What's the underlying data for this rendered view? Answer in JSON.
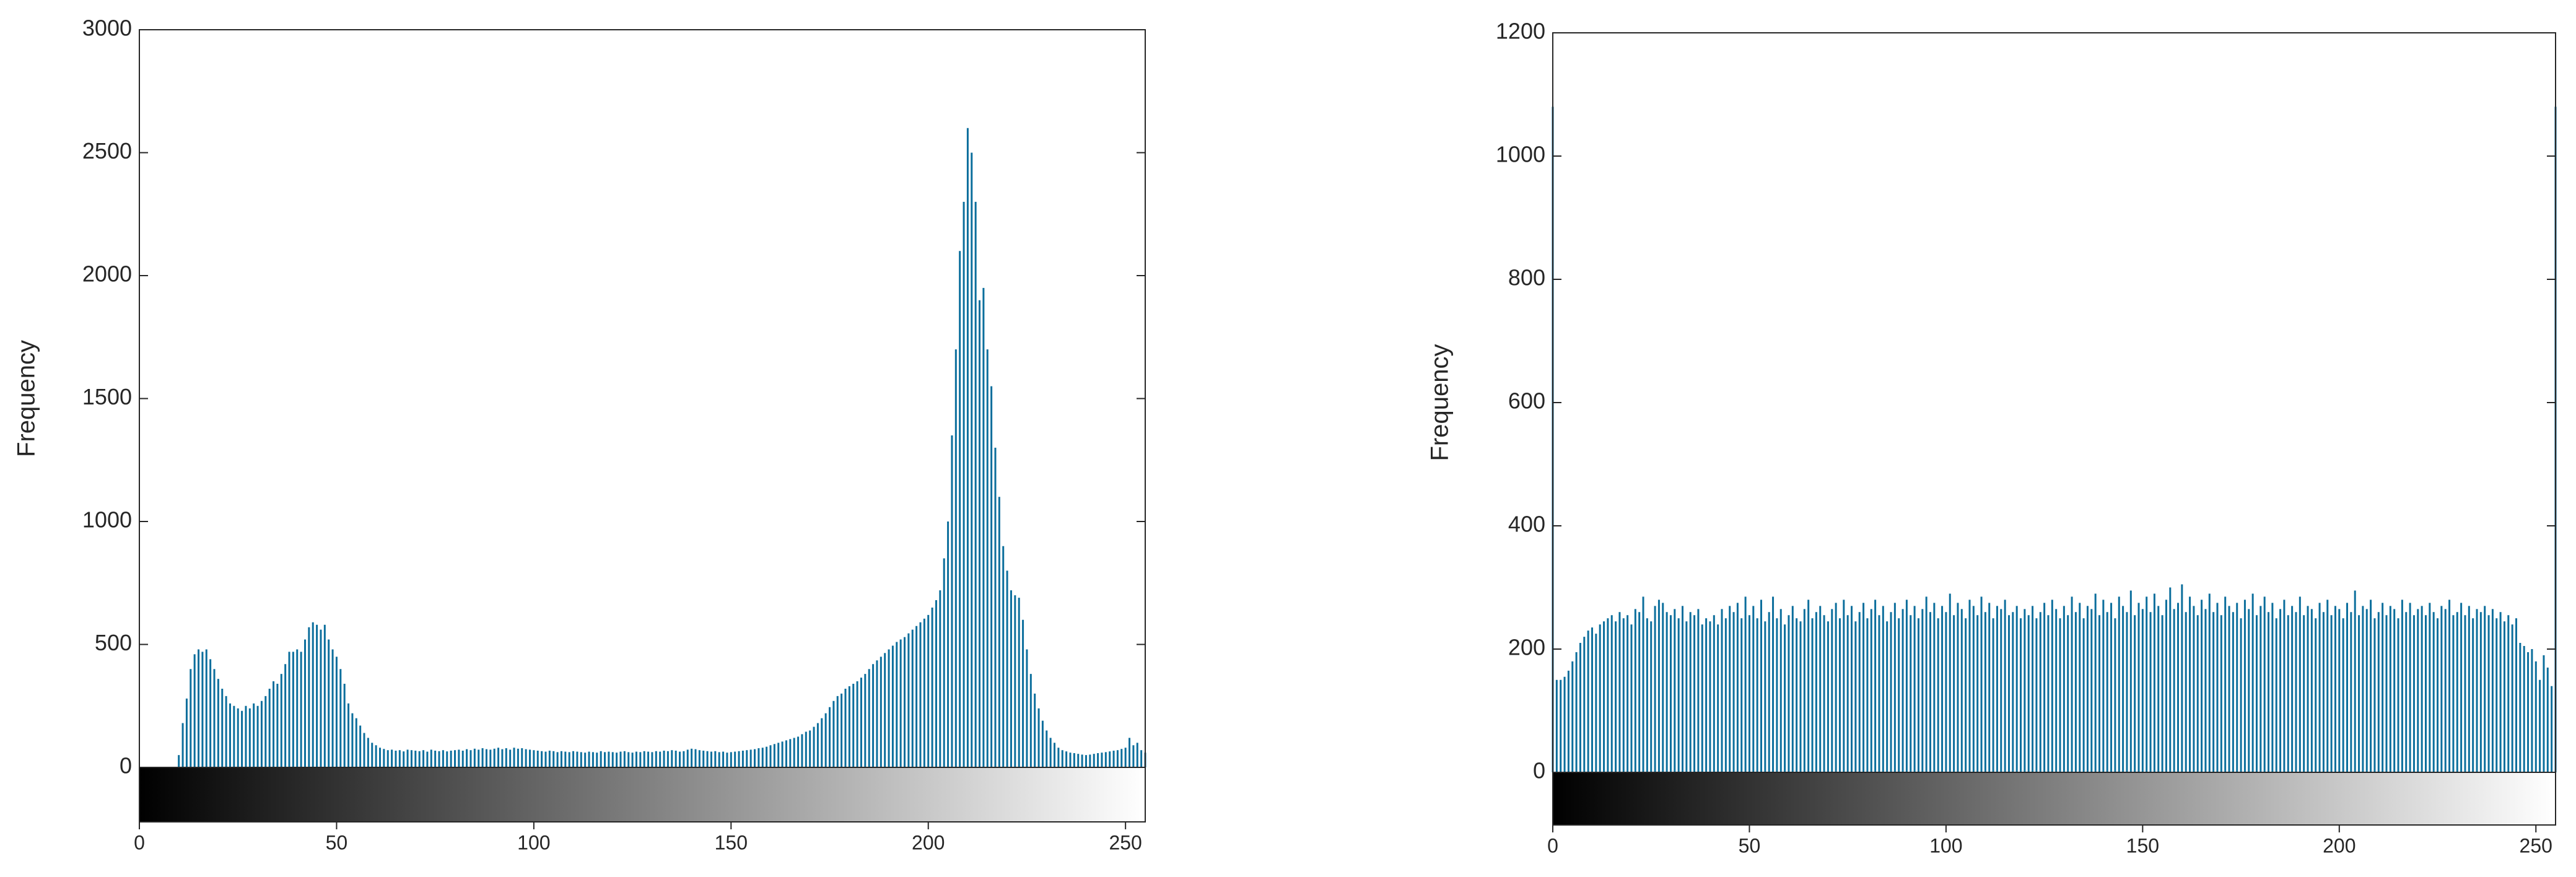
{
  "chart_data": [
    {
      "type": "histogram",
      "ylabel": "Frequency",
      "color": "#0b6e9c",
      "xlim": [
        0,
        255
      ],
      "xticks": [
        0,
        50,
        100,
        150,
        200,
        250
      ],
      "ylim": [
        0,
        3000
      ],
      "yticks": [
        0,
        500,
        1000,
        1500,
        2000,
        2500,
        3000
      ],
      "x": [
        0,
        1,
        2,
        3,
        4,
        5,
        6,
        7,
        8,
        9,
        10,
        11,
        12,
        13,
        14,
        15,
        16,
        17,
        18,
        19,
        20,
        21,
        22,
        23,
        24,
        25,
        26,
        27,
        28,
        29,
        30,
        31,
        32,
        33,
        34,
        35,
        36,
        37,
        38,
        39,
        40,
        41,
        42,
        43,
        44,
        45,
        46,
        47,
        48,
        49,
        50,
        51,
        52,
        53,
        54,
        55,
        56,
        57,
        58,
        59,
        60,
        61,
        62,
        63,
        64,
        65,
        66,
        67,
        68,
        69,
        70,
        71,
        72,
        73,
        74,
        75,
        76,
        77,
        78,
        79,
        80,
        81,
        82,
        83,
        84,
        85,
        86,
        87,
        88,
        89,
        90,
        91,
        92,
        93,
        94,
        95,
        96,
        97,
        98,
        99,
        100,
        101,
        102,
        103,
        104,
        105,
        106,
        107,
        108,
        109,
        110,
        111,
        112,
        113,
        114,
        115,
        116,
        117,
        118,
        119,
        120,
        121,
        122,
        123,
        124,
        125,
        126,
        127,
        128,
        129,
        130,
        131,
        132,
        133,
        134,
        135,
        136,
        137,
        138,
        139,
        140,
        141,
        142,
        143,
        144,
        145,
        146,
        147,
        148,
        149,
        150,
        151,
        152,
        153,
        154,
        155,
        156,
        157,
        158,
        159,
        160,
        161,
        162,
        163,
        164,
        165,
        166,
        167,
        168,
        169,
        170,
        171,
        172,
        173,
        174,
        175,
        176,
        177,
        178,
        179,
        180,
        181,
        182,
        183,
        184,
        185,
        186,
        187,
        188,
        189,
        190,
        191,
        192,
        193,
        194,
        195,
        196,
        197,
        198,
        199,
        200,
        201,
        202,
        203,
        204,
        205,
        206,
        207,
        208,
        209,
        210,
        211,
        212,
        213,
        214,
        215,
        216,
        217,
        218,
        219,
        220,
        221,
        222,
        223,
        224,
        225,
        226,
        227,
        228,
        229,
        230,
        231,
        232,
        233,
        234,
        235,
        236,
        237,
        238,
        239,
        240,
        241,
        242,
        243,
        244,
        245,
        246,
        247,
        248,
        249,
        250,
        251,
        252,
        253,
        254,
        255
      ],
      "values": [
        0,
        0,
        0,
        0,
        0,
        0,
        0,
        0,
        0,
        0,
        50,
        180,
        280,
        400,
        460,
        480,
        470,
        480,
        440,
        400,
        360,
        320,
        290,
        260,
        250,
        240,
        230,
        250,
        240,
        260,
        250,
        270,
        290,
        320,
        350,
        340,
        380,
        420,
        470,
        470,
        480,
        470,
        520,
        570,
        590,
        580,
        560,
        580,
        520,
        480,
        450,
        400,
        340,
        260,
        220,
        200,
        170,
        140,
        120,
        100,
        90,
        80,
        75,
        70,
        72,
        68,
        70,
        65,
        72,
        70,
        68,
        66,
        70,
        64,
        72,
        68,
        66,
        70,
        65,
        68,
        70,
        72,
        68,
        74,
        70,
        76,
        72,
        78,
        74,
        72,
        76,
        80,
        74,
        78,
        72,
        80,
        76,
        78,
        74,
        72,
        70,
        68,
        66,
        64,
        68,
        66,
        62,
        66,
        64,
        62,
        66,
        64,
        62,
        60,
        64,
        62,
        60,
        66,
        62,
        64,
        62,
        60,
        64,
        66,
        62,
        60,
        64,
        62,
        66,
        64,
        62,
        66,
        64,
        68,
        66,
        70,
        68,
        64,
        66,
        72,
        76,
        74,
        70,
        68,
        66,
        64,
        66,
        62,
        64,
        60,
        62,
        64,
        66,
        68,
        70,
        72,
        74,
        78,
        80,
        84,
        90,
        95,
        100,
        105,
        110,
        115,
        120,
        125,
        135,
        145,
        150,
        165,
        180,
        200,
        220,
        245,
        270,
        290,
        300,
        320,
        330,
        340,
        350,
        365,
        380,
        400,
        420,
        435,
        450,
        465,
        480,
        495,
        510,
        520,
        530,
        545,
        560,
        575,
        590,
        605,
        620,
        650,
        680,
        720,
        850,
        1000,
        1350,
        1700,
        2100,
        2300,
        2600,
        2500,
        2300,
        1900,
        1950,
        1700,
        1550,
        1300,
        1100,
        900,
        800,
        720,
        700,
        690,
        600,
        480,
        380,
        300,
        240,
        190,
        150,
        120,
        100,
        80,
        70,
        65,
        60,
        58,
        55,
        52,
        50,
        52,
        55,
        58,
        60,
        62,
        65,
        68,
        70,
        75,
        80,
        120,
        90,
        100,
        70,
        60
      ]
    },
    {
      "type": "histogram",
      "ylabel": "Frequency",
      "color": "#0b6e9c",
      "xlim": [
        0,
        255
      ],
      "xticks": [
        0,
        50,
        100,
        150,
        200,
        250
      ],
      "ylim": [
        0,
        1200
      ],
      "yticks": [
        0,
        200,
        400,
        600,
        800,
        1000,
        1200
      ],
      "x": [
        0,
        1,
        2,
        3,
        4,
        5,
        6,
        7,
        8,
        9,
        10,
        11,
        12,
        13,
        14,
        15,
        16,
        17,
        18,
        19,
        20,
        21,
        22,
        23,
        24,
        25,
        26,
        27,
        28,
        29,
        30,
        31,
        32,
        33,
        34,
        35,
        36,
        37,
        38,
        39,
        40,
        41,
        42,
        43,
        44,
        45,
        46,
        47,
        48,
        49,
        50,
        51,
        52,
        53,
        54,
        55,
        56,
        57,
        58,
        59,
        60,
        61,
        62,
        63,
        64,
        65,
        66,
        67,
        68,
        69,
        70,
        71,
        72,
        73,
        74,
        75,
        76,
        77,
        78,
        79,
        80,
        81,
        82,
        83,
        84,
        85,
        86,
        87,
        88,
        89,
        90,
        91,
        92,
        93,
        94,
        95,
        96,
        97,
        98,
        99,
        100,
        101,
        102,
        103,
        104,
        105,
        106,
        107,
        108,
        109,
        110,
        111,
        112,
        113,
        114,
        115,
        116,
        117,
        118,
        119,
        120,
        121,
        122,
        123,
        124,
        125,
        126,
        127,
        128,
        129,
        130,
        131,
        132,
        133,
        134,
        135,
        136,
        137,
        138,
        139,
        140,
        141,
        142,
        143,
        144,
        145,
        146,
        147,
        148,
        149,
        150,
        151,
        152,
        153,
        154,
        155,
        156,
        157,
        158,
        159,
        160,
        161,
        162,
        163,
        164,
        165,
        166,
        167,
        168,
        169,
        170,
        171,
        172,
        173,
        174,
        175,
        176,
        177,
        178,
        179,
        180,
        181,
        182,
        183,
        184,
        185,
        186,
        187,
        188,
        189,
        190,
        191,
        192,
        193,
        194,
        195,
        196,
        197,
        198,
        199,
        200,
        201,
        202,
        203,
        204,
        205,
        206,
        207,
        208,
        209,
        210,
        211,
        212,
        213,
        214,
        215,
        216,
        217,
        218,
        219,
        220,
        221,
        222,
        223,
        224,
        225,
        226,
        227,
        228,
        229,
        230,
        231,
        232,
        233,
        234,
        235,
        236,
        237,
        238,
        239,
        240,
        241,
        242,
        243,
        244,
        245,
        246,
        247,
        248,
        249,
        250,
        251,
        252,
        253,
        254,
        255
      ],
      "values": [
        1080,
        150,
        150,
        155,
        165,
        180,
        195,
        210,
        220,
        230,
        235,
        225,
        240,
        245,
        250,
        255,
        245,
        260,
        250,
        255,
        240,
        265,
        260,
        285,
        250,
        245,
        270,
        280,
        275,
        260,
        255,
        265,
        250,
        270,
        245,
        260,
        255,
        265,
        240,
        250,
        245,
        255,
        240,
        265,
        250,
        270,
        260,
        275,
        250,
        285,
        255,
        270,
        250,
        280,
        245,
        260,
        285,
        250,
        265,
        240,
        255,
        270,
        250,
        245,
        265,
        280,
        250,
        260,
        270,
        255,
        245,
        265,
        275,
        250,
        280,
        255,
        270,
        245,
        260,
        275,
        250,
        265,
        280,
        255,
        270,
        245,
        260,
        275,
        250,
        265,
        280,
        255,
        270,
        250,
        265,
        285,
        260,
        275,
        250,
        270,
        260,
        290,
        255,
        275,
        265,
        250,
        280,
        270,
        255,
        285,
        260,
        275,
        250,
        270,
        265,
        280,
        255,
        260,
        270,
        250,
        265,
        255,
        270,
        250,
        260,
        275,
        255,
        280,
        265,
        250,
        270,
        255,
        285,
        260,
        275,
        250,
        270,
        265,
        290,
        255,
        280,
        260,
        275,
        250,
        285,
        270,
        260,
        295,
        255,
        275,
        265,
        285,
        260,
        290,
        270,
        255,
        280,
        300,
        265,
        275,
        305,
        260,
        285,
        270,
        255,
        280,
        265,
        290,
        260,
        275,
        255,
        285,
        270,
        260,
        275,
        250,
        280,
        265,
        290,
        255,
        270,
        285,
        260,
        275,
        250,
        265,
        280,
        255,
        270,
        260,
        285,
        255,
        270,
        265,
        250,
        275,
        260,
        280,
        255,
        270,
        265,
        250,
        275,
        260,
        295,
        255,
        270,
        265,
        280,
        250,
        260,
        275,
        255,
        270,
        265,
        250,
        280,
        260,
        275,
        255,
        265,
        270,
        255,
        275,
        260,
        250,
        270,
        265,
        280,
        255,
        260,
        275,
        255,
        270,
        250,
        265,
        260,
        270,
        255,
        265,
        250,
        260,
        245,
        255,
        240,
        250,
        210,
        205,
        195,
        200,
        180,
        150,
        190,
        170,
        140,
        1080
      ]
    }
  ]
}
